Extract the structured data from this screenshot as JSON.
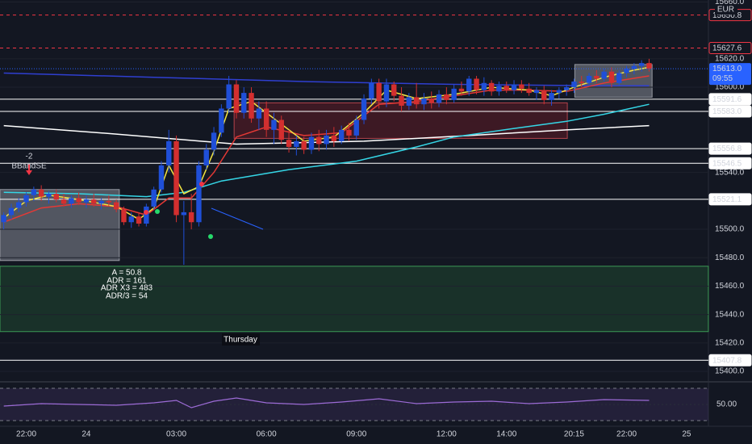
{
  "chart_data": [
    {
      "type": "candlestick",
      "currency": "EUR",
      "countdown": "09:55",
      "up_color": "#1f4fd8",
      "down_color": "#d32f2f",
      "categories": [
        null,
        null,
        null,
        "22:00",
        null,
        null,
        null,
        null,
        null,
        null,
        null,
        "24",
        null,
        null,
        null,
        null,
        null,
        null,
        null,
        null,
        null,
        null,
        null,
        "03:00",
        null,
        null,
        null,
        null,
        null,
        null,
        null,
        null,
        null,
        null,
        null,
        "06:00",
        null,
        null,
        null,
        null,
        null,
        null,
        null,
        null,
        null,
        null,
        null,
        "09:00",
        null,
        null,
        null,
        null,
        null,
        null,
        null,
        null,
        null,
        null,
        null,
        "12:00",
        null,
        null,
        null,
        null,
        null,
        null,
        null,
        "14:00",
        null,
        null,
        null,
        null,
        null,
        null,
        null,
        null,
        "20:15",
        null,
        null,
        null,
        null,
        null,
        null,
        "22:00",
        null,
        null,
        null,
        null,
        null,
        null,
        null,
        "25"
      ],
      "open": [
        15505,
        15510,
        15515,
        15519,
        15524,
        15528,
        15523,
        15525,
        15521,
        15518,
        15522,
        15519,
        15521,
        15518,
        15520,
        15519,
        15514,
        15505,
        15509,
        15504,
        15516,
        15528,
        15545,
        15562,
        15510,
        15512,
        15505,
        15545,
        15556,
        15568,
        15585,
        15602,
        15582,
        15596,
        15578,
        15585,
        15570,
        15577,
        15563,
        15558,
        15562,
        15556,
        15565,
        15560,
        15566,
        15562,
        15570,
        15566,
        15577,
        15592,
        15603,
        15590,
        15602,
        15594,
        15587,
        15593,
        15588,
        15592,
        15589,
        15595,
        15591,
        15599,
        15597,
        15606,
        15598,
        15603,
        15597,
        15601,
        15598,
        15602,
        15599,
        15596,
        15598,
        15591,
        15596,
        15598,
        15600,
        15604,
        15603,
        15608,
        15606,
        15611,
        15603,
        15610,
        15613,
        15615,
        15617,
        null,
        null,
        null,
        null,
        null
      ],
      "high": [
        15512,
        15518,
        15522,
        15526,
        15530,
        15531,
        15527,
        15528,
        15525,
        15524,
        15526,
        15524,
        15525,
        15522,
        15524,
        15521,
        15516,
        15512,
        15512,
        15518,
        15530,
        15548,
        15570,
        15566,
        15520,
        15525,
        15548,
        15560,
        15572,
        15588,
        15608,
        15605,
        15600,
        15600,
        15590,
        15590,
        15582,
        15580,
        15570,
        15566,
        15565,
        15568,
        15570,
        15570,
        15572,
        15573,
        15575,
        15580,
        15595,
        15606,
        15606,
        15606,
        15604,
        15600,
        15596,
        15603,
        15596,
        15597,
        15598,
        15600,
        15602,
        15604,
        15608,
        15608,
        15607,
        15605,
        15604,
        15604,
        15605,
        15605,
        15603,
        15600,
        15601,
        15598,
        15600,
        15602,
        15606,
        15608,
        15610,
        15612,
        15613,
        15614,
        15612,
        15615,
        15617,
        15619,
        15620,
        null,
        null,
        null,
        null,
        null
      ],
      "low": [
        15500,
        15507,
        15512,
        15516,
        15520,
        15520,
        15518,
        15519,
        15516,
        15515,
        15517,
        15515,
        15516,
        15514,
        15516,
        15512,
        15503,
        15501,
        15502,
        15502,
        15514,
        15526,
        15540,
        15505,
        15475,
        15500,
        15502,
        15542,
        15552,
        15565,
        15582,
        15578,
        15578,
        15575,
        15570,
        15565,
        15560,
        15560,
        15554,
        15552,
        15553,
        15553,
        15555,
        15556,
        15558,
        15560,
        15562,
        15563,
        15574,
        15588,
        15585,
        15586,
        15590,
        15583,
        15584,
        15585,
        15584,
        15585,
        15586,
        15588,
        15589,
        15594,
        15594,
        15595,
        15594,
        15594,
        15594,
        15596,
        15595,
        15596,
        15594,
        15591,
        15588,
        15587,
        15592,
        15594,
        15596,
        15600,
        15601,
        15603,
        15604,
        15600,
        15601,
        15607,
        15609,
        15611,
        15611,
        null,
        null,
        null,
        null,
        null
      ],
      "close": [
        15510,
        15515,
        15519,
        15524,
        15528,
        15523,
        15525,
        15521,
        15518,
        15522,
        15519,
        15521,
        15518,
        15520,
        15519,
        15514,
        15505,
        15509,
        15504,
        15516,
        15528,
        15545,
        15562,
        15510,
        15512,
        15505,
        15545,
        15556,
        15568,
        15585,
        15602,
        15582,
        15596,
        15578,
        15585,
        15570,
        15577,
        15563,
        15558,
        15562,
        15556,
        15565,
        15560,
        15566,
        15562,
        15570,
        15566,
        15577,
        15592,
        15603,
        15590,
        15602,
        15594,
        15587,
        15593,
        15588,
        15592,
        15589,
        15595,
        15591,
        15599,
        15597,
        15606,
        15598,
        15603,
        15597,
        15601,
        15598,
        15602,
        15599,
        15596,
        15598,
        15591,
        15596,
        15598,
        15600,
        15604,
        15603,
        15608,
        15606,
        15611,
        15603,
        15610,
        15613,
        15615,
        15617,
        15613,
        null,
        null,
        null,
        null,
        null
      ],
      "current_price": {
        "value": 15613,
        "label": "15613.0",
        "color": "#2962ff"
      },
      "ylim": [
        15393.2,
        15661.4
      ],
      "yticks": [
        {
          "value": 15660,
          "label": "15660.0"
        },
        {
          "value": 15620,
          "label": "15620.0"
        },
        {
          "value": 15600,
          "label": "15600.0"
        },
        {
          "value": 15540,
          "label": "15540.0"
        },
        {
          "value": 15500,
          "label": "15500.0"
        },
        {
          "value": 15480,
          "label": "15480.0"
        },
        {
          "value": 15460,
          "label": "15460.0"
        },
        {
          "value": 15440,
          "label": "15440.0"
        },
        {
          "value": 15420,
          "label": "15420.0"
        },
        {
          "value": 15400,
          "label": "15400.0"
        }
      ],
      "grid": true,
      "levels": [
        {
          "value": 15650.8,
          "label": "15650.8",
          "color": "#f23645",
          "dashed": true
        },
        {
          "value": 15627.6,
          "label": "15627.6",
          "color": "#f23645",
          "dashed": true
        },
        {
          "value": 15591.6,
          "label": "15591.6",
          "color": "#ffffff",
          "dashed": false
        },
        {
          "value": 15583,
          "label": "15583.0",
          "color": "#ffffff",
          "dashed": false
        },
        {
          "value": 15556.8,
          "label": "15556.8",
          "color": "#ffffff",
          "dashed": false
        },
        {
          "value": 15546.5,
          "label": "15546.5",
          "color": "#ffffff",
          "dashed": false
        },
        {
          "value": 15521.1,
          "label": "15521.1",
          "color": "#ffffff",
          "dashed": false
        },
        {
          "value": 15407.8,
          "label": "15407.8",
          "color": "#ffffff",
          "dashed": false
        }
      ],
      "zones": [
        {
          "x": [
            -0.5,
            15.4
          ],
          "y": [
            15478,
            15528
          ],
          "color": "rgba(200,204,214,0.35)",
          "border": "#9598a1"
        },
        {
          "x": [
            30.7,
            75.1
          ],
          "y": [
            15564,
            15589
          ],
          "color": "rgba(140,30,40,0.35)",
          "border": "#b2434b"
        },
        {
          "x": [
            -0.5,
            93.9
          ],
          "y": [
            15428,
            15474
          ],
          "color": "rgba(40,110,60,0.3)",
          "border": "#3c9a55"
        },
        {
          "x": [
            76.1,
            86.4
          ],
          "y": [
            15593,
            15616
          ],
          "color": "rgba(200,204,214,0.35)",
          "border": "#9598a1"
        }
      ],
      "overlays": [
        {
          "color": "#2f3fd0",
          "x": [
            0,
            20,
            40,
            60,
            80,
            86
          ],
          "values": [
            15610,
            15607,
            15604,
            15602,
            15601,
            15601
          ]
        },
        {
          "color": "#ffffff",
          "x": [
            0,
            15,
            31,
            48,
            62,
            75,
            86
          ],
          "values": [
            15573,
            15567,
            15560,
            15562,
            15566,
            15570,
            15573
          ]
        },
        {
          "color": "#35d6e6",
          "x": [
            0,
            10,
            19,
            24,
            29,
            38,
            47,
            55,
            60,
            68,
            75,
            80,
            86
          ],
          "values": [
            15526,
            15525,
            15523,
            15526,
            15534,
            15542,
            15548,
            15558,
            15565,
            15571,
            15576,
            15581,
            15588
          ]
        },
        {
          "color": "#e53935",
          "x": [
            0,
            5,
            10,
            15,
            19,
            22,
            25,
            28,
            31,
            35,
            40,
            45,
            50,
            55,
            60,
            65,
            70,
            75,
            80,
            86
          ],
          "values": [
            15505,
            15515,
            15518,
            15516,
            15510,
            15522,
            15522,
            15540,
            15565,
            15572,
            15566,
            15568,
            15588,
            15590,
            15594,
            15598,
            15598,
            15597,
            15603,
            15608
          ]
        },
        {
          "color": "#f5e642",
          "x": [
            0,
            3,
            6,
            10,
            15,
            18,
            20,
            22,
            24,
            26,
            28,
            30,
            33,
            36,
            40,
            44,
            48,
            51,
            55,
            60,
            65,
            70,
            73,
            76,
            80,
            84,
            86
          ],
          "values": [
            15508,
            15520,
            15524,
            15521,
            15516,
            15507,
            15515,
            15545,
            15525,
            15530,
            15555,
            15585,
            15590,
            15578,
            15562,
            15565,
            15582,
            15598,
            15592,
            15595,
            15600,
            15598,
            15594,
            15600,
            15607,
            15612,
            15614
          ]
        }
      ],
      "annotations": {
        "signal_value": "-2",
        "signal_name": "BBandSE",
        "stats": [
          "A = 50.8",
          "ADR = 161",
          "ADR X3 = 483",
          "ADR/3 = 54"
        ],
        "day": "Thursday"
      }
    },
    {
      "type": "line",
      "color": "#9c6bd6",
      "x": [
        0,
        5,
        10,
        15,
        20,
        23,
        25,
        28,
        31,
        35,
        40,
        45,
        50,
        55,
        60,
        65,
        70,
        75,
        80,
        86
      ],
      "values": [
        48,
        51,
        50,
        49,
        52,
        55,
        46,
        54,
        58,
        52,
        50,
        53,
        57,
        51,
        53,
        54,
        51,
        53,
        56,
        55
      ],
      "ylim": [
        24,
        76
      ],
      "yticks": [
        {
          "value": 50,
          "label": "50.00"
        }
      ],
      "bands": [
        30,
        70
      ]
    }
  ]
}
